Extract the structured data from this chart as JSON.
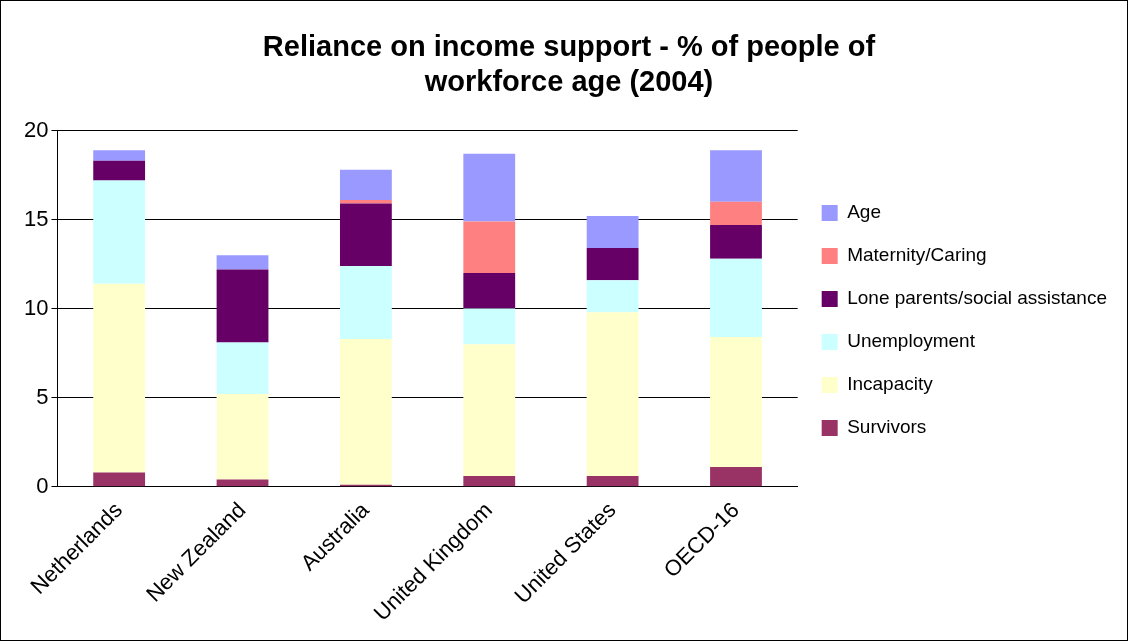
{
  "chart_data": {
    "type": "bar",
    "title": "Reliance on income support - % of people of workforce age (2004)",
    "categories": [
      "Netherlands",
      "New Zealand",
      "Australia",
      "United Kingdom",
      "United States",
      "OECD-16"
    ],
    "stacked": true,
    "ylim": [
      0,
      20
    ],
    "yticks": [
      0,
      5,
      10,
      15,
      20
    ],
    "grid": "y",
    "legend": "right",
    "series": [
      {
        "name": "Survivors",
        "color": "#993366",
        "values": [
          0.8,
          0.4,
          0.1,
          0.6,
          0.6,
          1.1
        ]
      },
      {
        "name": "Incapacity",
        "color": "#ffffcc",
        "values": [
          10.6,
          4.8,
          8.2,
          7.4,
          9.2,
          7.3
        ]
      },
      {
        "name": "Unemployment",
        "color": "#ccffff",
        "values": [
          5.8,
          2.9,
          4.1,
          2.0,
          1.8,
          4.4
        ]
      },
      {
        "name": "Lone parents/social assistance",
        "color": "#660066",
        "values": [
          1.1,
          4.1,
          3.5,
          2.0,
          1.8,
          1.9
        ]
      },
      {
        "name": "Maternity/Caring",
        "color": "#ff8080",
        "values": [
          0,
          0,
          0.2,
          2.9,
          0,
          1.3
        ]
      },
      {
        "name": "Age",
        "color": "#9999ff",
        "values": [
          0.6,
          0.8,
          1.7,
          3.8,
          1.8,
          2.9
        ]
      }
    ]
  }
}
